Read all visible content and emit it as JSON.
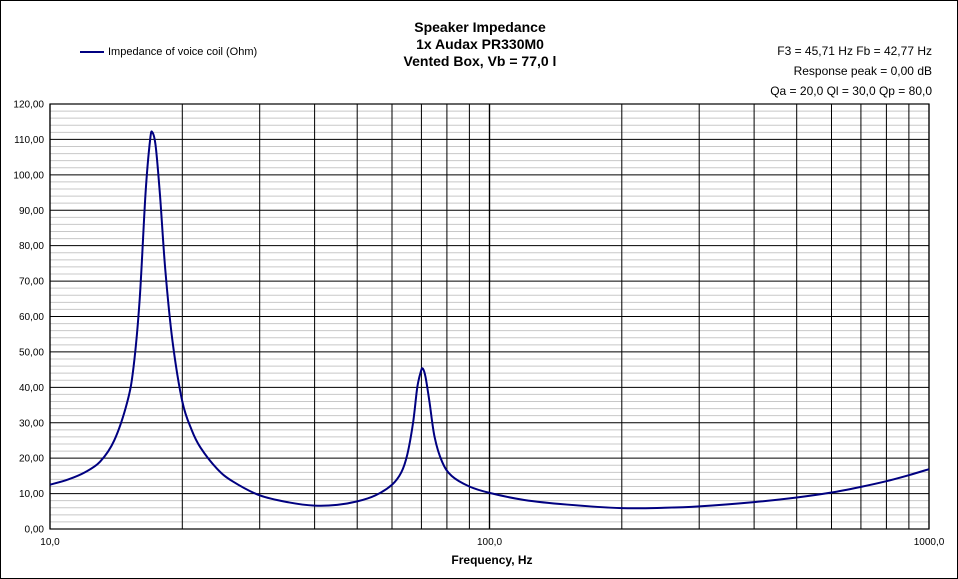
{
  "chart_data": {
    "type": "line",
    "title_lines": [
      "Speaker Impedance",
      "1x Audax PR330M0",
      "Vented Box, Vb = 77,0 l"
    ],
    "xlabel": "Frequency, Hz",
    "ylabel": "",
    "x_scale": "log",
    "xlim": [
      10,
      1000
    ],
    "ylim": [
      0,
      120
    ],
    "x_tick_labels": [
      {
        "value": 10,
        "label": "10,0"
      },
      {
        "value": 100,
        "label": "100,0"
      },
      {
        "value": 1000,
        "label": "1000,0"
      }
    ],
    "y_tick_labels": [
      {
        "value": 0,
        "label": "0,00"
      },
      {
        "value": 10,
        "label": "10,00"
      },
      {
        "value": 20,
        "label": "20,00"
      },
      {
        "value": 30,
        "label": "30,00"
      },
      {
        "value": 40,
        "label": "40,00"
      },
      {
        "value": 50,
        "label": "50,00"
      },
      {
        "value": 60,
        "label": "60,00"
      },
      {
        "value": 70,
        "label": "70,00"
      },
      {
        "value": 80,
        "label": "80,00"
      },
      {
        "value": 90,
        "label": "90,00"
      },
      {
        "value": 100,
        "label": "100,00"
      },
      {
        "value": 110,
        "label": "110,00"
      },
      {
        "value": 120,
        "label": "120,00"
      }
    ],
    "grid": {
      "major": true,
      "minor_y_step": 2
    },
    "legend_position": "top-left",
    "series": [
      {
        "name": "Impedance of voice coil (Ohm)",
        "color": "#000080",
        "points": [
          [
            10,
            12.5
          ],
          [
            11,
            14
          ],
          [
            12,
            16
          ],
          [
            13,
            19
          ],
          [
            14,
            25
          ],
          [
            15,
            36
          ],
          [
            15.5,
            46
          ],
          [
            16,
            65
          ],
          [
            16.5,
            95
          ],
          [
            16.9,
            110
          ],
          [
            17.1,
            112
          ],
          [
            17.4,
            108
          ],
          [
            17.8,
            94
          ],
          [
            18.3,
            73
          ],
          [
            19,
            53
          ],
          [
            20,
            36
          ],
          [
            21,
            28
          ],
          [
            22,
            23
          ],
          [
            24,
            17
          ],
          [
            26,
            13.5
          ],
          [
            30,
            9.5
          ],
          [
            35,
            7.5
          ],
          [
            40,
            6.6
          ],
          [
            45,
            6.8
          ],
          [
            50,
            7.8
          ],
          [
            55,
            9.5
          ],
          [
            60,
            12.5
          ],
          [
            63,
            16
          ],
          [
            65,
            21
          ],
          [
            67,
            30
          ],
          [
            68.5,
            40
          ],
          [
            69.8,
            44.5
          ],
          [
            70.5,
            45.3
          ],
          [
            71.5,
            43
          ],
          [
            73,
            36
          ],
          [
            75,
            26
          ],
          [
            78,
            19
          ],
          [
            82,
            15
          ],
          [
            90,
            12
          ],
          [
            100,
            10.2
          ],
          [
            120,
            8.2
          ],
          [
            150,
            6.9
          ],
          [
            200,
            5.9
          ],
          [
            250,
            6
          ],
          [
            300,
            6.4
          ],
          [
            400,
            7.6
          ],
          [
            500,
            8.9
          ],
          [
            600,
            10.3
          ],
          [
            700,
            11.9
          ],
          [
            800,
            13.5
          ],
          [
            900,
            15.2
          ],
          [
            1000,
            16.9
          ]
        ]
      }
    ]
  },
  "info": {
    "line1": "F3 = 45,71  Hz  Fb = 42,77  Hz",
    "line2": "Response peak = 0,00 dB",
    "line3": "Qa = 20,0  Ql = 30,0  Qp = 80,0"
  }
}
